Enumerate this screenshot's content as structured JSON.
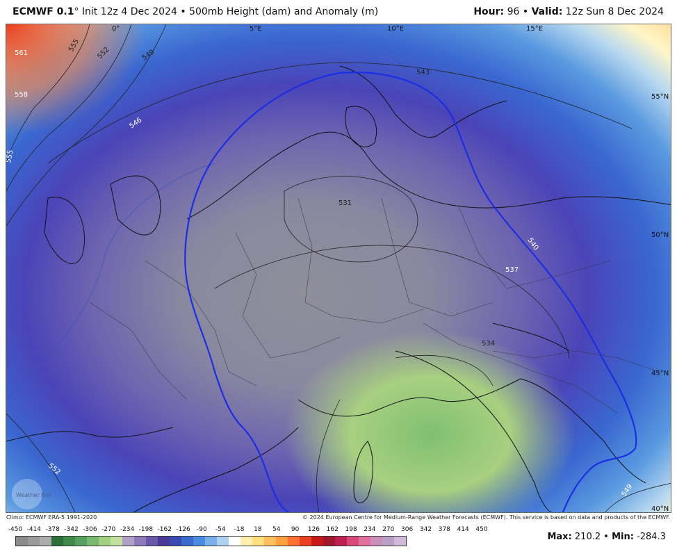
{
  "header": {
    "model": "ECMWF 0.1",
    "degree": "°",
    "init": "Init 12z 4 Dec 2024",
    "bullet": "•",
    "product": "500mb Height (dam) and Anomaly (m)",
    "hour_label": "Hour:",
    "hour_value": "96",
    "valid_label": "Valid:",
    "valid_value": "12z Sun 8 Dec 2024"
  },
  "map": {
    "longitude_labels": [
      "0°",
      "5°E",
      "10°E",
      "15°E"
    ],
    "latitude_labels": [
      "55°N",
      "50°N",
      "45°N",
      "40°N"
    ],
    "contour_labels": [
      "561",
      "555",
      "552",
      "549",
      "546",
      "543",
      "540",
      "537",
      "531",
      "534",
      "558",
      "555",
      "552",
      "549"
    ],
    "watermark": "Weather Bell"
  },
  "footer": {
    "climo": "Climo: ECMWF ERA-5 1991-2020",
    "copyright": "© 2024 European Centre for Medium-Range Weather Forecasts (ECMWF). This service is based on data and products of the ECMWF."
  },
  "colorbar": {
    "ticks": [
      "-450",
      "-414",
      "-378",
      "-342",
      "-306",
      "-270",
      "-234",
      "-198",
      "-162",
      "-126",
      "-90",
      "-54",
      "-18",
      "18",
      "54",
      "90",
      "126",
      "162",
      "198",
      "234",
      "270",
      "306",
      "342",
      "378",
      "414",
      "450"
    ],
    "colors": [
      "#8a8a8a",
      "#9a9a9a",
      "#acacac",
      "#2d6e3a",
      "#3d8a4a",
      "#56a060",
      "#7aba70",
      "#a0d080",
      "#c4e0a0",
      "#b0a0c8",
      "#8e7ab8",
      "#6a58a8",
      "#4a3a98",
      "#3a4ab0",
      "#3a6ad0",
      "#4a8ae0",
      "#7ab0e8",
      "#b0d0f0",
      "#ffffff",
      "#fff0b0",
      "#ffe080",
      "#ffc060",
      "#ffa040",
      "#ff7030",
      "#e84020",
      "#c81818",
      "#a01830",
      "#c02050",
      "#d84878",
      "#e070a0",
      "#c890b8",
      "#b8a0c8",
      "#d0b8d8"
    ],
    "max_label": "Max:",
    "max_value": "210.2",
    "min_label": "Min:",
    "min_value": "-284.3"
  }
}
